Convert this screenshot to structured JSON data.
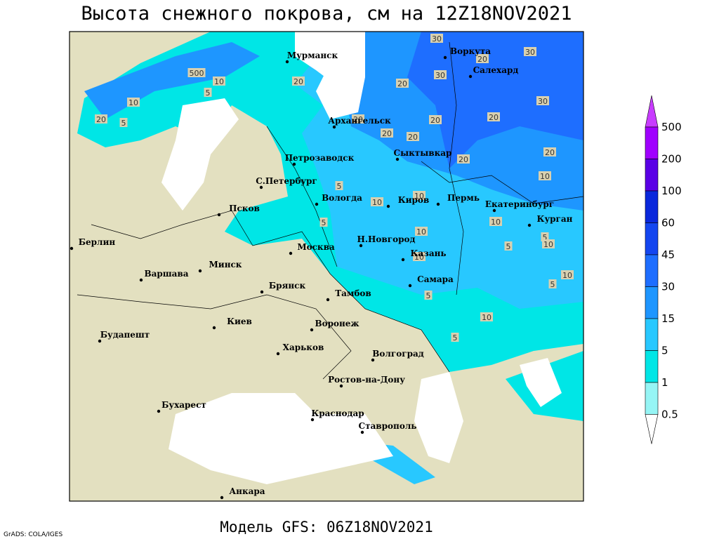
{
  "header": {
    "title": "Высота снежного покрова, см на 12Z18NOV2021"
  },
  "footer": {
    "model": "Модель GFS: 06Z18NOV2021",
    "credit": "GrADS: COLA/IGES"
  },
  "cities": [
    "Мурманск",
    "Воркута",
    "Салехард",
    "Архангельск",
    "Сыктывкар",
    "Петрозаводск",
    "С.Петербург",
    "Вологда",
    "Киров",
    "Пермь",
    "Екатеринбург",
    "Курган",
    "Псков",
    "Н.Новгород",
    "Берлин",
    "Москва",
    "Казань",
    "Минск",
    "Варшава",
    "Самара",
    "Брянск",
    "Тамбов",
    "Киев",
    "Воронеж",
    "Будапешт",
    "Харьков",
    "Волгоград",
    "Ростов-на-Дону",
    "Бухарест",
    "Краснодар",
    "Ставрополь",
    "Анкара"
  ],
  "contour_labels": [
    "30",
    "30",
    "20",
    "500",
    "10",
    "20",
    "30",
    "20",
    "5",
    "10",
    "30",
    "5",
    "20",
    "20",
    "20",
    "20",
    "20",
    "20",
    "20",
    "20",
    "10",
    "5",
    "10",
    "10",
    "5",
    "10",
    "10",
    "5",
    "10",
    "5",
    "10",
    "10",
    "5",
    "5",
    "10",
    "5"
  ],
  "legend": {
    "labels": [
      "500",
      "200",
      "100",
      "60",
      "45",
      "30",
      "15",
      "5",
      "1",
      "0.5"
    ],
    "colors": [
      "#c83cff",
      "#a000ff",
      "#5a00e6",
      "#0a28dc",
      "#1446f0",
      "#1e6eff",
      "#1e96ff",
      "#28c8ff",
      "#00e6e6",
      "#96f5f5",
      "#ffffff"
    ]
  }
}
